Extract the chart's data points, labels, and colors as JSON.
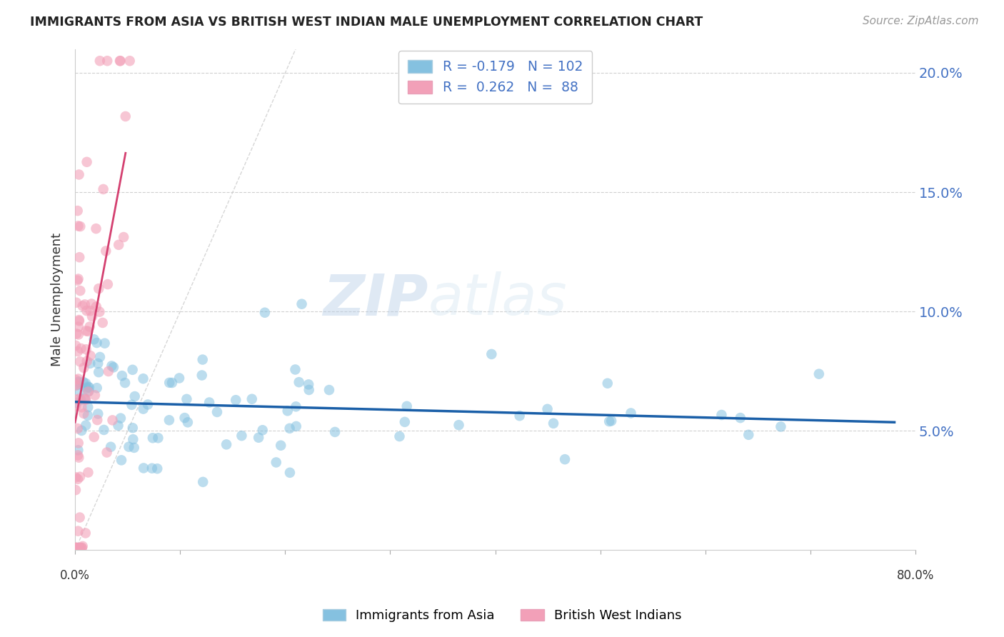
{
  "title": "IMMIGRANTS FROM ASIA VS BRITISH WEST INDIAN MALE UNEMPLOYMENT CORRELATION CHART",
  "source": "Source: ZipAtlas.com",
  "ylabel": "Male Unemployment",
  "legend_blue_R": "-0.179",
  "legend_blue_N": "102",
  "legend_pink_R": "0.262",
  "legend_pink_N": "88",
  "color_blue": "#85c1e0",
  "color_pink": "#f2a0b8",
  "color_trendline_blue": "#1a5fa8",
  "color_trendline_pink": "#d44070",
  "color_diagonal": "#cccccc",
  "watermark_zip": "ZIP",
  "watermark_atlas": "atlas",
  "xlim": [
    0.0,
    0.8
  ],
  "ylim": [
    0.0,
    0.21
  ],
  "ytick_vals": [
    0.05,
    0.1,
    0.15,
    0.2
  ],
  "ytick_labels": [
    "5.0%",
    "10.0%",
    "15.0%",
    "20.0%"
  ],
  "xtick_vals": [
    0.0,
    0.1,
    0.2,
    0.3,
    0.4,
    0.5,
    0.6,
    0.7,
    0.8
  ],
  "seed_blue": 42,
  "seed_pink": 77,
  "N_blue": 102,
  "N_pink": 88
}
